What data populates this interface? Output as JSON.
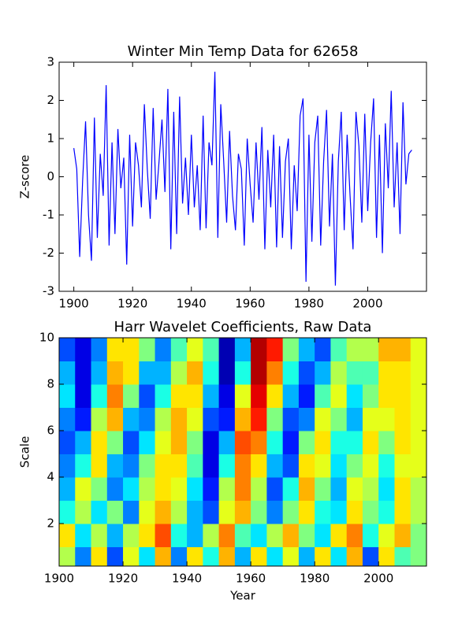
{
  "chart_data": [
    {
      "type": "line",
      "title": "Winter Min Temp Data for 62658",
      "ylabel": "Z-score",
      "x": [
        1900,
        1901,
        1902,
        1903,
        1904,
        1905,
        1906,
        1907,
        1908,
        1909,
        1910,
        1911,
        1912,
        1913,
        1914,
        1915,
        1916,
        1917,
        1918,
        1919,
        1920,
        1921,
        1922,
        1923,
        1924,
        1925,
        1926,
        1927,
        1928,
        1929,
        1930,
        1931,
        1932,
        1933,
        1934,
        1935,
        1936,
        1937,
        1938,
        1939,
        1940,
        1941,
        1942,
        1943,
        1944,
        1945,
        1946,
        1947,
        1948,
        1949,
        1950,
        1951,
        1952,
        1953,
        1954,
        1955,
        1956,
        1957,
        1958,
        1959,
        1960,
        1961,
        1962,
        1963,
        1964,
        1965,
        1966,
        1967,
        1968,
        1969,
        1970,
        1971,
        1972,
        1973,
        1974,
        1975,
        1976,
        1977,
        1978,
        1979,
        1980,
        1981,
        1982,
        1983,
        1984,
        1985,
        1986,
        1987,
        1988,
        1989,
        1990,
        1991,
        1992,
        1993,
        1994,
        1995,
        1996,
        1997,
        1998,
        1999,
        2000,
        2001,
        2002,
        2003,
        2004,
        2005,
        2006,
        2007,
        2008,
        2009,
        2010,
        2011,
        2012,
        2013,
        2014,
        2015
      ],
      "series": [
        {
          "name": "Z-score",
          "color": "#0000ff",
          "values": [
            0.75,
            0.2,
            -2.1,
            -0.1,
            1.45,
            -1.0,
            -2.2,
            1.55,
            -1.6,
            0.6,
            -0.5,
            2.4,
            -1.8,
            0.9,
            -1.5,
            1.25,
            -0.3,
            0.5,
            -2.3,
            1.1,
            -1.3,
            0.9,
            0.3,
            -0.8,
            1.9,
            0.2,
            -1.1,
            1.8,
            -0.6,
            0.4,
            1.5,
            -0.4,
            2.3,
            -1.9,
            1.7,
            -1.5,
            2.1,
            -0.7,
            0.5,
            -1.0,
            1.1,
            -0.8,
            0.3,
            -1.4,
            1.6,
            -1.35,
            0.9,
            0.3,
            2.75,
            -1.6,
            1.9,
            0.4,
            -1.2,
            1.2,
            -0.5,
            -1.4,
            0.6,
            0.2,
            -1.8,
            1.0,
            -0.2,
            -1.2,
            0.9,
            -0.6,
            1.3,
            -1.9,
            0.7,
            -0.8,
            1.1,
            -1.85,
            0.8,
            -1.6,
            0.4,
            1.0,
            -1.9,
            0.3,
            -0.9,
            1.6,
            2.05,
            -2.75,
            1.1,
            -1.7,
            0.9,
            1.6,
            -1.8,
            0.4,
            1.75,
            -1.3,
            0.6,
            -2.85,
            0.4,
            1.7,
            -1.4,
            1.1,
            -0.5,
            -1.9,
            1.7,
            0.8,
            -1.2,
            1.65,
            -0.9,
            0.9,
            2.05,
            -1.6,
            1.1,
            -2.0,
            1.4,
            -0.3,
            2.25,
            -0.8,
            0.9,
            -1.5,
            1.95,
            -0.2,
            0.6,
            0.7
          ]
        }
      ],
      "xlim": [
        1895,
        2020
      ],
      "ylim": [
        -3,
        3
      ],
      "xticks": [
        1900,
        1920,
        1940,
        1960,
        1980,
        2000
      ],
      "yticks": [
        -3,
        -2,
        -1,
        0,
        1,
        2,
        3
      ]
    },
    {
      "type": "heatmap",
      "title": "Harr Wavelet Coefficients, Raw Data",
      "xlabel": "Year",
      "ylabel": "Scale",
      "colormap": "jet",
      "zlim": [
        -1,
        1
      ],
      "x_bins": [
        1900,
        1905,
        1910,
        1915,
        1920,
        1925,
        1930,
        1935,
        1940,
        1945,
        1950,
        1955,
        1960,
        1965,
        1970,
        1975,
        1980,
        1985,
        1990,
        1995,
        2000,
        2005,
        2010,
        2015
      ],
      "y_bins": [
        0.17,
        1,
        2,
        3,
        4,
        5,
        6,
        7,
        8,
        9,
        10
      ],
      "z": [
        [
          0.1,
          -0.5,
          0.3,
          -0.6,
          0.2,
          -0.3,
          0.4,
          -0.5,
          0.3,
          -0.2,
          0.4,
          -0.4,
          0.3,
          -0.3,
          0.2,
          -0.4,
          0.3,
          -0.3,
          0.4,
          -0.6,
          0.3,
          -0.1,
          0
        ],
        [
          0.3,
          -0.3,
          0.1,
          -0.4,
          0.1,
          0.3,
          0.6,
          -0.2,
          -0.4,
          0.1,
          0.5,
          -0.1,
          -0.3,
          0.1,
          0.4,
          0,
          -0.3,
          0.3,
          0.5,
          -0.2,
          0.2,
          0.4,
          0
        ],
        [
          -0.2,
          0.1,
          -0.3,
          0,
          -0.5,
          0.2,
          0.4,
          0.1,
          -0.4,
          -0.6,
          0.2,
          0.4,
          0,
          -0.5,
          0,
          0.3,
          -0.2,
          -0.3,
          0.3,
          0,
          -0.2,
          0.3,
          0.1
        ],
        [
          -0.4,
          0.2,
          0,
          -0.5,
          -0.3,
          0.1,
          0.3,
          0.2,
          -0.3,
          -0.7,
          0.1,
          0.5,
          0.1,
          -0.6,
          -0.2,
          0.4,
          0,
          -0.4,
          0.2,
          0.1,
          -0.3,
          0.3,
          0.1
        ],
        [
          -0.5,
          -0.2,
          0.3,
          -0.4,
          -0.5,
          0,
          0.3,
          0.3,
          -0.1,
          -0.8,
          -0.2,
          0.5,
          0.3,
          -0.4,
          -0.6,
          0.3,
          0.2,
          -0.3,
          0,
          0.2,
          -0.2,
          0.2,
          0.2
        ],
        [
          -0.6,
          -0.4,
          0.3,
          0,
          -0.6,
          -0.3,
          0.2,
          0.4,
          0,
          -0.8,
          -0.4,
          0.6,
          0.5,
          -0.2,
          -0.7,
          0,
          0.3,
          -0.2,
          -0.2,
          0.3,
          0,
          0.3,
          0.2
        ],
        [
          -0.5,
          -0.7,
          0.1,
          0.4,
          -0.4,
          -0.5,
          0.1,
          0.4,
          0.2,
          -0.6,
          -0.7,
          0.4,
          0.7,
          0,
          -0.6,
          -0.5,
          0.2,
          0,
          -0.4,
          0.2,
          0.2,
          0.3,
          0.2
        ],
        [
          -0.3,
          -0.8,
          -0.2,
          0.5,
          0,
          -0.6,
          -0.2,
          0.3,
          0.3,
          -0.4,
          -0.8,
          0.2,
          0.8,
          0.3,
          -0.4,
          -0.7,
          -0.1,
          0.2,
          -0.3,
          0,
          0.3,
          0.3,
          0.2
        ],
        [
          -0.4,
          -0.8,
          -0.4,
          0.4,
          0.3,
          -0.4,
          -0.4,
          0.1,
          0.4,
          -0.2,
          -0.9,
          -0.2,
          0.9,
          0.5,
          -0.2,
          -0.6,
          -0.4,
          0.1,
          -0.1,
          -0.1,
          0.3,
          0.3,
          0.2
        ],
        [
          -0.6,
          -0.8,
          -0.5,
          0.3,
          0.3,
          0,
          -0.5,
          -0.1,
          0.2,
          -0.1,
          -0.9,
          -0.4,
          0.9,
          0.7,
          0,
          -0.4,
          -0.6,
          -0.1,
          0.1,
          0.1,
          0.4,
          0.4,
          0.2
        ]
      ],
      "xlim": [
        1900,
        2015
      ],
      "ylim": [
        0.17,
        10
      ],
      "xticks": [
        1900,
        1920,
        1940,
        1960,
        1980,
        2000
      ],
      "yticks": [
        2,
        4,
        6,
        8,
        10
      ]
    }
  ]
}
